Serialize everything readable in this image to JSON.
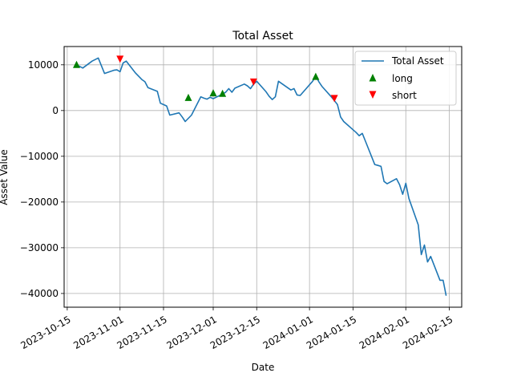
{
  "chart_data": {
    "type": "line",
    "title": "Total Asset",
    "xlabel": "Date",
    "ylabel": "Asset Value",
    "x_range": [
      "2023-10-14",
      "2024-02-19"
    ],
    "ylim": [
      -43000,
      14000
    ],
    "x_ticks": [
      "2023-10-15",
      "2023-11-01",
      "2023-11-15",
      "2023-12-01",
      "2023-12-15",
      "2024-01-01",
      "2024-01-15",
      "2024-02-01",
      "2024-02-15"
    ],
    "y_ticks": [
      -40000,
      -30000,
      -20000,
      -10000,
      0,
      10000
    ],
    "grid": true,
    "legend_position": "top-right",
    "colors": {
      "line": "#1f77b4",
      "long": "#008000",
      "short": "#ff0000",
      "grid": "#b0b0b0"
    },
    "series": [
      {
        "name": "Total Asset",
        "kind": "line",
        "x": [
          "2023-10-18",
          "2023-10-20",
          "2023-10-23",
          "2023-10-25",
          "2023-10-26",
          "2023-10-27",
          "2023-10-30",
          "2023-10-31",
          "2023-11-01",
          "2023-11-02",
          "2023-11-03",
          "2023-11-06",
          "2023-11-07",
          "2023-11-08",
          "2023-11-09",
          "2023-11-10",
          "2023-11-13",
          "2023-11-14",
          "2023-11-15",
          "2023-11-16",
          "2023-11-17",
          "2023-11-20",
          "2023-11-21",
          "2023-11-22",
          "2023-11-24",
          "2023-11-27",
          "2023-11-28",
          "2023-11-29",
          "2023-11-30",
          "2023-12-01",
          "2023-12-04",
          "2023-12-05",
          "2023-12-06",
          "2023-12-07",
          "2023-12-08",
          "2023-12-11",
          "2023-12-12",
          "2023-12-13",
          "2023-12-14",
          "2023-12-15",
          "2023-12-18",
          "2023-12-19",
          "2023-12-20",
          "2023-12-21",
          "2023-12-22",
          "2023-12-26",
          "2023-12-27",
          "2023-12-28",
          "2023-12-29",
          "2024-01-02",
          "2024-01-03",
          "2024-01-04",
          "2024-01-05",
          "2024-01-08",
          "2024-01-09",
          "2024-01-10",
          "2024-01-11",
          "2024-01-12",
          "2024-01-16",
          "2024-01-17",
          "2024-01-18",
          "2024-01-19",
          "2024-01-22",
          "2024-01-23",
          "2024-01-24",
          "2024-01-25",
          "2024-01-26",
          "2024-01-29",
          "2024-01-30",
          "2024-01-31",
          "2024-02-01",
          "2024-02-02",
          "2024-02-05",
          "2024-02-06",
          "2024-02-07",
          "2024-02-08",
          "2024-02-09",
          "2024-02-12",
          "2024-02-13",
          "2024-02-14"
        ],
        "values": [
          10000,
          9300,
          10800,
          11500,
          9800,
          8100,
          8800,
          8900,
          8500,
          10400,
          10800,
          8200,
          7500,
          6800,
          6300,
          5000,
          4200,
          1600,
          1300,
          1000,
          -1000,
          -500,
          -1400,
          -2400,
          -1000,
          3000,
          2700,
          2500,
          2900,
          2600,
          3600,
          4000,
          4800,
          4000,
          4900,
          5800,
          5400,
          4800,
          5800,
          6400,
          4100,
          3100,
          2400,
          3000,
          6400,
          4500,
          4800,
          3400,
          3300,
          6400,
          7500,
          6300,
          5300,
          3000,
          2200,
          1300,
          -1400,
          -2400,
          -4800,
          -5500,
          -5000,
          -6700,
          -11800,
          -12000,
          -12200,
          -15500,
          -16000,
          -14900,
          -16200,
          -18300,
          -15900,
          -19200,
          -25000,
          -31500,
          -29400,
          -33100,
          -31900,
          -37100,
          -37100,
          -40500
        ]
      },
      {
        "name": "long",
        "kind": "marker-up",
        "x": [
          "2023-10-18",
          "2023-11-23",
          "2023-12-01",
          "2023-12-04",
          "2024-01-03"
        ],
        "values": [
          10000,
          2800,
          3800,
          3700,
          7400
        ]
      },
      {
        "name": "short",
        "kind": "marker-down",
        "x": [
          "2023-11-01",
          "2023-12-14",
          "2024-01-09"
        ],
        "values": [
          11300,
          6300,
          2700
        ]
      }
    ]
  }
}
